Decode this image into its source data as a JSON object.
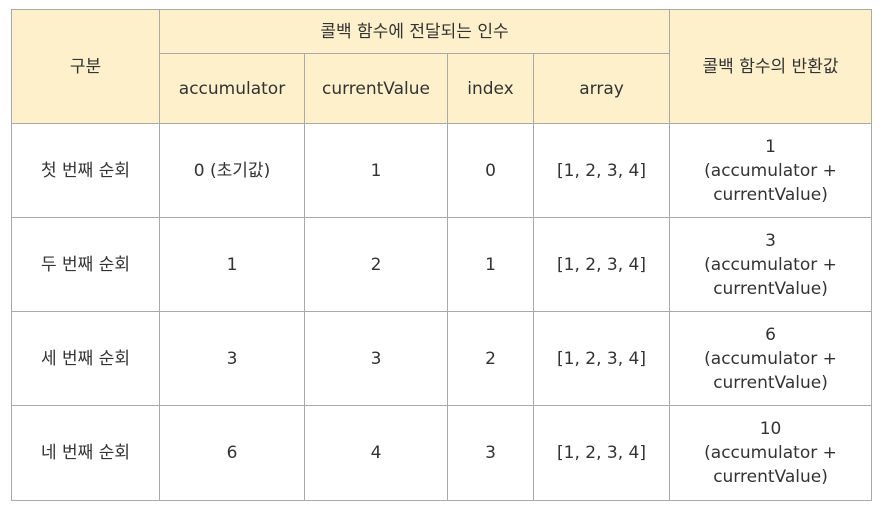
{
  "table": {
    "header": {
      "category": "구분",
      "args_group": "콜백 함수에 전달되는 인수",
      "return_col": "콜백 함수의 반환값",
      "sub_columns": [
        "accumulator",
        "currentValue",
        "index",
        "array"
      ]
    },
    "rows": [
      {
        "label": "첫 번째 순회",
        "accumulator": "0 (초기값)",
        "currentValue": "1",
        "index": "0",
        "array": "[1, 2, 3, 4]",
        "return_value": "1",
        "return_expr_1": "(accumulator +",
        "return_expr_2": "currentValue)"
      },
      {
        "label": "두 번째 순회",
        "accumulator": "1",
        "currentValue": "2",
        "index": "1",
        "array": "[1, 2, 3, 4]",
        "return_value": "3",
        "return_expr_1": "(accumulator +",
        "return_expr_2": "currentValue)"
      },
      {
        "label": "세 번째 순회",
        "accumulator": "3",
        "currentValue": "3",
        "index": "2",
        "array": "[1, 2, 3, 4]",
        "return_value": "6",
        "return_expr_1": "(accumulator +",
        "return_expr_2": "currentValue)"
      },
      {
        "label": "네 번째 순회",
        "accumulator": "6",
        "currentValue": "4",
        "index": "3",
        "array": "[1, 2, 3, 4]",
        "return_value": "10",
        "return_expr_1": "(accumulator +",
        "return_expr_2": "currentValue)"
      }
    ]
  },
  "colors": {
    "header_background": "#fdf0cb",
    "border": "#a9a9a9",
    "text": "#333333"
  }
}
